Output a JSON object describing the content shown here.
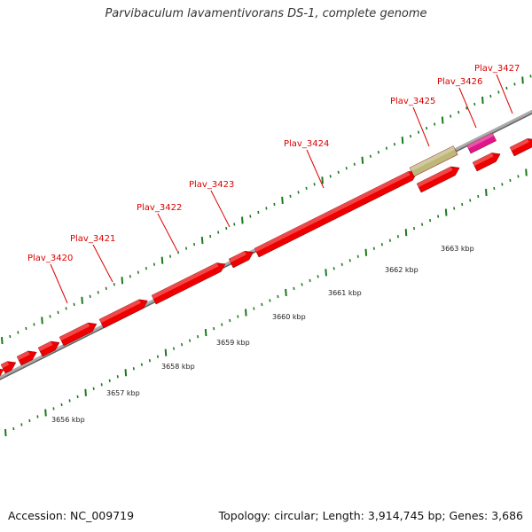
{
  "title": "Parvibaculum lavamentivorans DS-1, complete genome",
  "footer": {
    "accession": "Accession: NC_009719",
    "topology": "Topology: circular; Length: 3,914,745 bp; Genes: 3,686"
  },
  "genes": [
    {
      "label": "Plav_3420",
      "color": "#ee0000"
    },
    {
      "label": "Plav_3421",
      "color": "#ee0000"
    },
    {
      "label": "Plav_3422",
      "color": "#ee0000"
    },
    {
      "label": "Plav_3423",
      "color": "#ee0000"
    },
    {
      "label": "Plav_3424",
      "color": "#ee0000"
    },
    {
      "label": "Plav_3425",
      "color": "#bdb77a"
    },
    {
      "label": "Plav_3426",
      "color": "#e0148c"
    },
    {
      "label": "Plav_3427",
      "color": "#ee0000"
    }
  ],
  "kbp_labels": [
    "3656 kbp",
    "3657 kbp",
    "3658 kbp",
    "3659 kbp",
    "3660 kbp",
    "3661 kbp",
    "3662 kbp",
    "3663 kbp"
  ],
  "colors": {
    "gene_red": "#ee0000",
    "gene_olive": "#bdb77a",
    "gene_magenta": "#e0148c",
    "backbone": "#888888",
    "tick_green": "#1a7a1a",
    "label_red": "#dd0000"
  }
}
